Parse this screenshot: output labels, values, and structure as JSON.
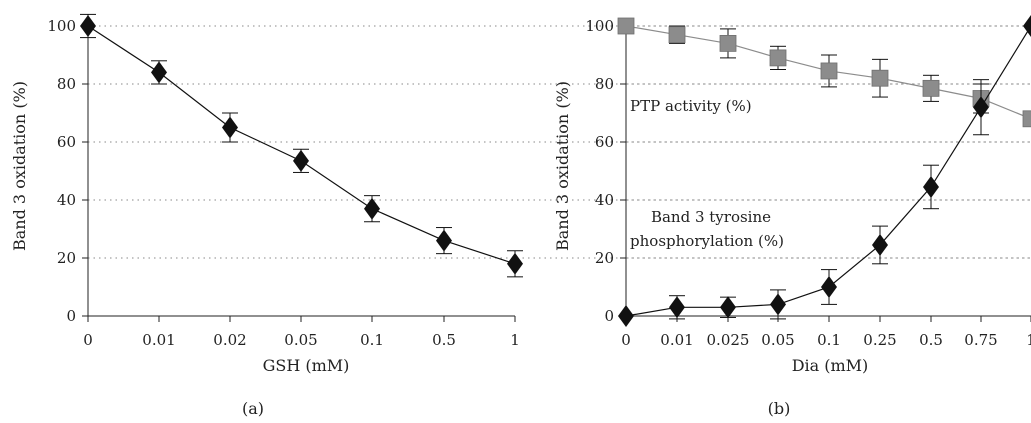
{
  "chart_data": [
    {
      "type": "line",
      "panel_label": "(a)",
      "xlabel": "GSH (mM)",
      "ylabel": "Band 3 oxidation (%)",
      "categories": [
        "0",
        "0.01",
        "0.02",
        "0.05",
        "0.1",
        "0.5",
        "1"
      ],
      "ylim": [
        0,
        100
      ],
      "yticks": [
        0,
        20,
        40,
        60,
        80,
        100
      ],
      "grid": "horizontal dotted",
      "series": [
        {
          "marker": "diamond",
          "color": "#111111",
          "values": [
            100,
            84,
            65,
            53.5,
            37,
            26,
            18
          ],
          "errors": [
            4,
            4,
            5,
            4,
            4.5,
            4.5,
            4.5
          ]
        }
      ]
    },
    {
      "type": "line",
      "panel_label": "(b)",
      "xlabel": "Dia (mM)",
      "ylabel": "Band 3 oxidation (%)",
      "categories": [
        "0",
        "0.01",
        "0.025",
        "0.05",
        "0.1",
        "0.25",
        "0.5",
        "0.75",
        "1"
      ],
      "ylim": [
        0,
        100
      ],
      "yticks": [
        0,
        20,
        40,
        60,
        80,
        100
      ],
      "grid": "horizontal dotted",
      "series": [
        {
          "name": "PTP activity (%)",
          "marker": "square",
          "color": "#8c8c8c",
          "values": [
            100,
            97,
            94,
            89,
            84.5,
            82,
            78.5,
            75,
            68
          ],
          "errors": [
            0,
            3,
            5,
            4,
            5.5,
            6.5,
            4.5,
            5,
            0
          ]
        },
        {
          "name_lines": [
            "Band 3 tyrosine",
            "phosphorylation (%)"
          ],
          "marker": "diamond",
          "color": "#111111",
          "values": [
            0,
            3,
            3,
            4,
            10,
            24.5,
            44.5,
            72,
            100
          ],
          "errors": [
            0,
            4,
            3.5,
            5,
            6,
            6.5,
            7.5,
            9.5,
            0
          ]
        }
      ]
    }
  ]
}
